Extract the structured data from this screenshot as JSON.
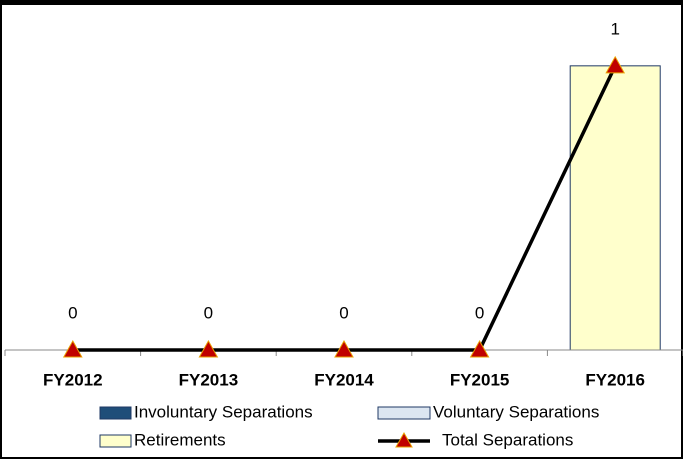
{
  "chart_data": {
    "type": "bar_line",
    "categories": [
      "FY2012",
      "FY2013",
      "FY2014",
      "FY2015",
      "FY2016"
    ],
    "series": [
      {
        "name": "Involuntary Separations",
        "color": "#1f4e79",
        "values": [
          0,
          0,
          0,
          0,
          0
        ]
      },
      {
        "name": "Voluntary Separations",
        "color": "#dce6f1",
        "values": [
          0,
          0,
          0,
          0,
          0
        ]
      },
      {
        "name": "Retirements",
        "color": "#ffffcc",
        "values": [
          0,
          0,
          0,
          0,
          1
        ]
      },
      {
        "name": "Total Separations",
        "type": "line",
        "color": "#000000",
        "marker_color": "#c00000",
        "values": [
          0,
          0,
          0,
          0,
          1
        ]
      }
    ],
    "ylim": [
      0,
      1.2
    ]
  }
}
